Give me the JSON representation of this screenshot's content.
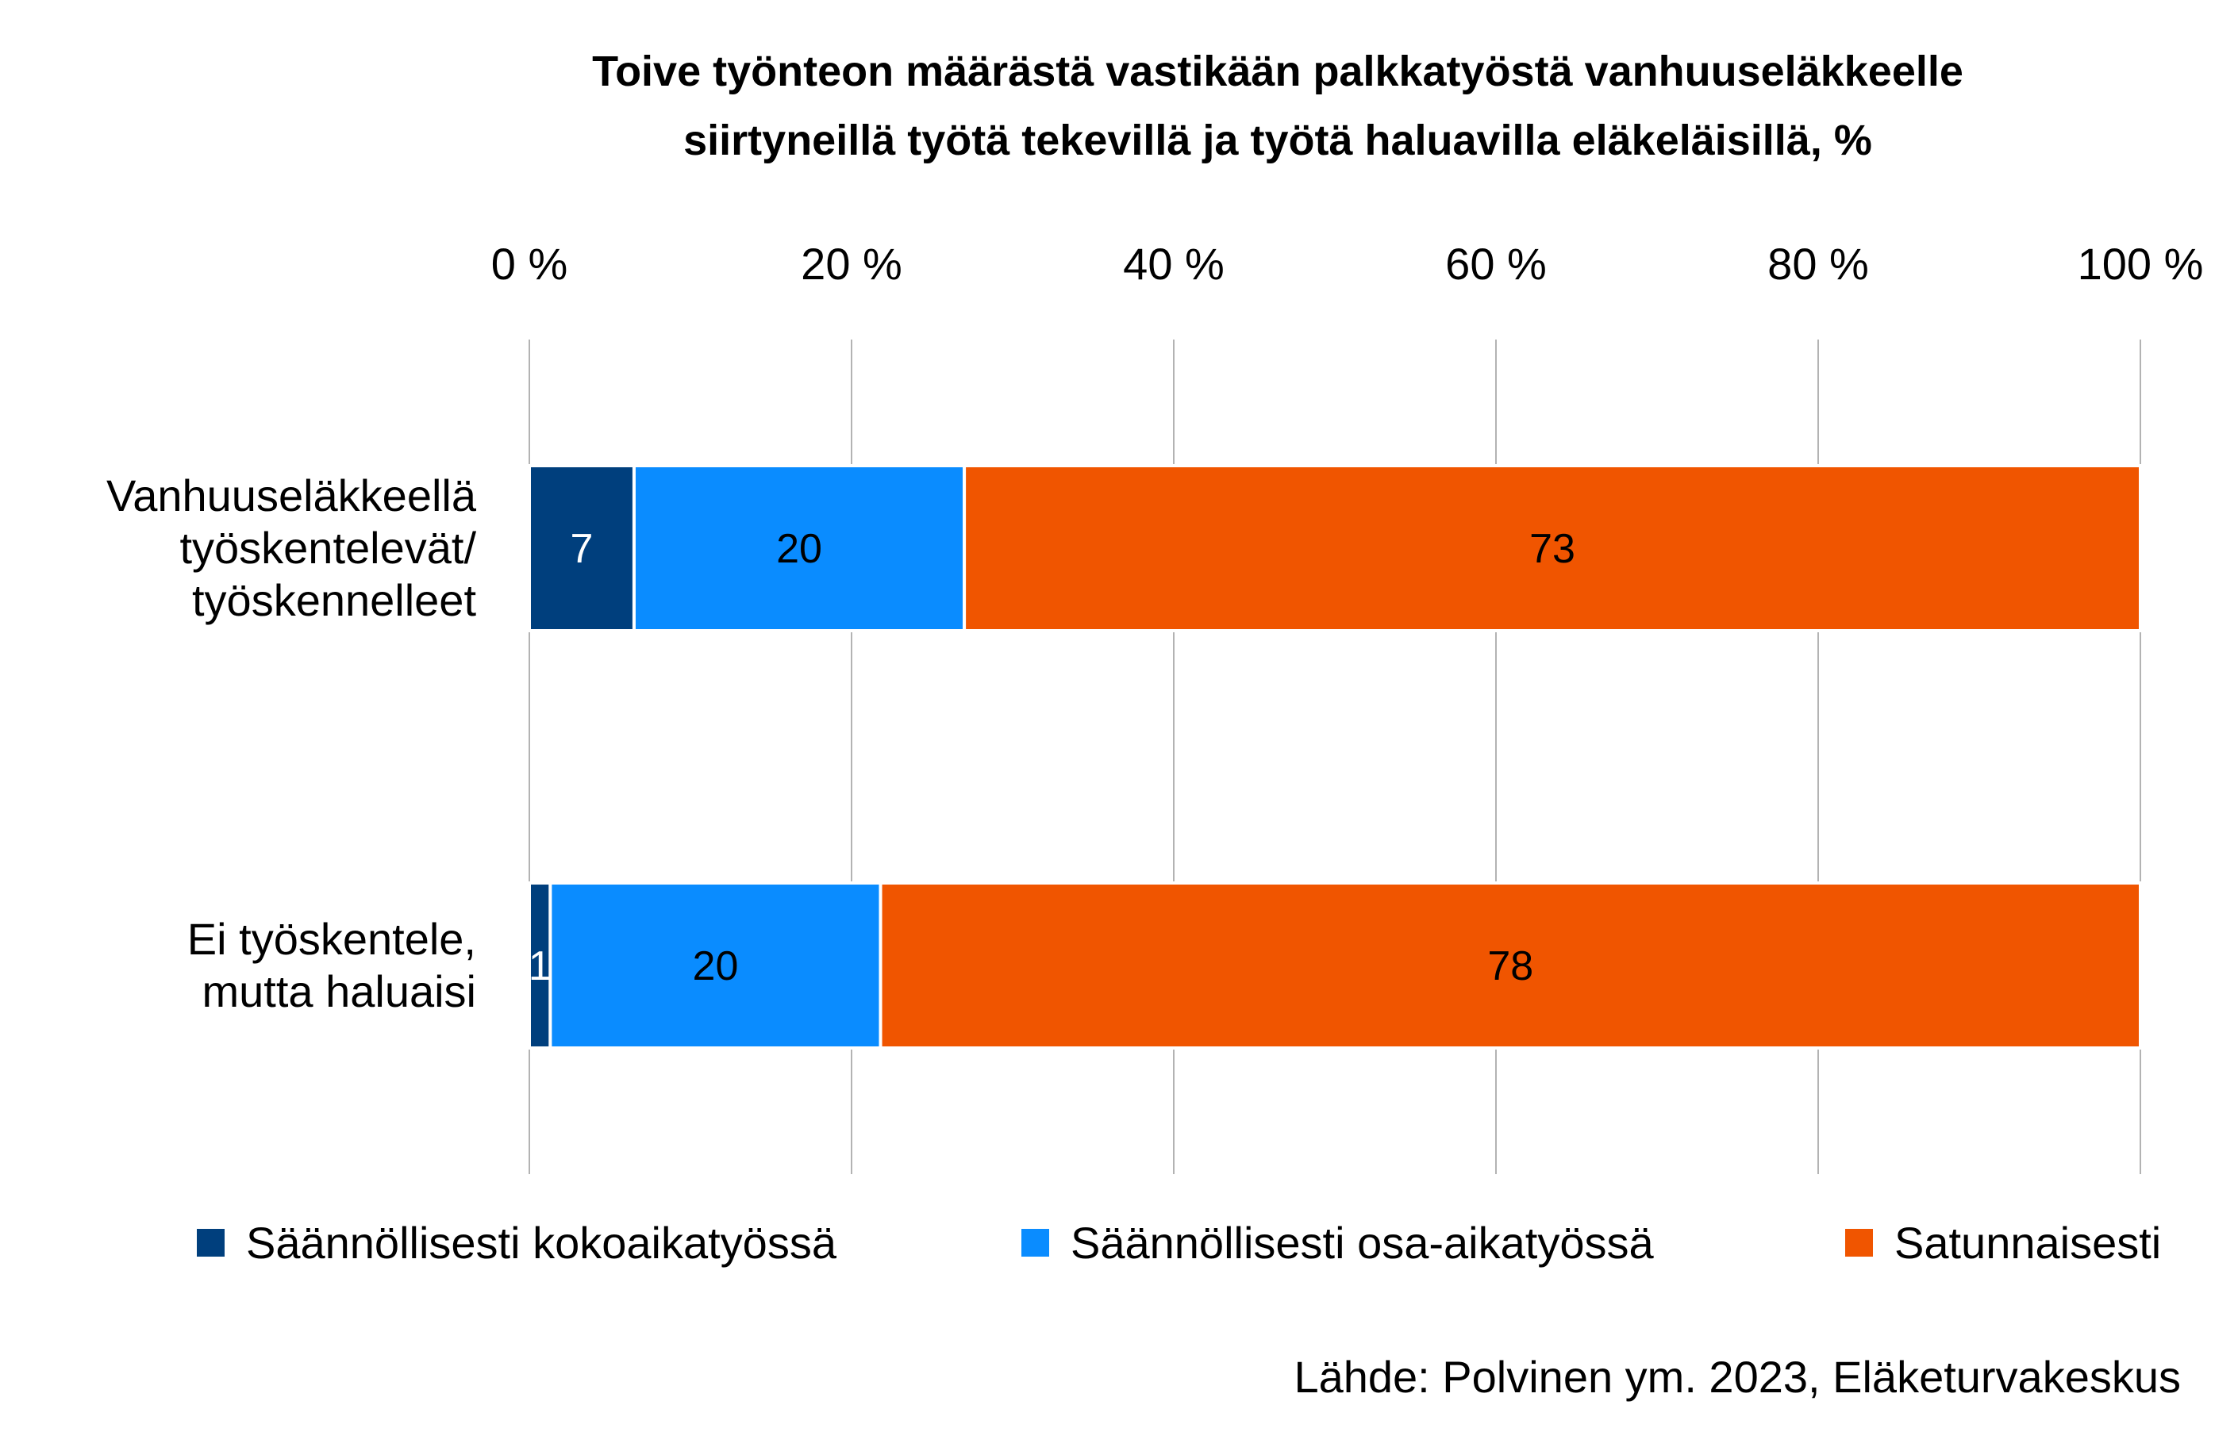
{
  "chart_data": {
    "type": "bar",
    "orientation": "horizontal",
    "stacked": "percent",
    "title": [
      "Toive työnteon määrästä vastikään palkkatyöstä vanhuuseläkkeelle",
      "siirtyneillä työtä tekevillä ja työtä haluavilla eläkeläisillä, %"
    ],
    "categories": [
      [
        "Vanhuuseläkkeellä",
        "työskentelevät/",
        "työskennelleet"
      ],
      [
        "Ei työskentele,",
        "mutta haluaisi"
      ]
    ],
    "series": [
      {
        "name": "Säännöllisesti kokoaikatyössä",
        "values": [
          6.5,
          1.3
        ],
        "labels": [
          "7",
          "1"
        ],
        "color": "#003f7d",
        "label_color": "#ffffff"
      },
      {
        "name": "Säännöllisesti osa-aikatyössä",
        "values": [
          20.5,
          20.5
        ],
        "labels": [
          "20",
          "20"
        ],
        "color": "#0a8cff",
        "label_color": "#000000"
      },
      {
        "name": "Satunnaisesti",
        "values": [
          73,
          78.2
        ],
        "labels": [
          "73",
          "78"
        ],
        "color": "#f05500",
        "label_color": "#000000"
      }
    ],
    "xlim": [
      0,
      100
    ],
    "x_ticks": [
      "0 %",
      "20 %",
      "40 %",
      "60 %",
      "80 %",
      "100 %"
    ],
    "grid": true,
    "legend_position": "bottom"
  },
  "source": "Lähde: Polvinen ym. 2023, Eläketurvakeskus"
}
